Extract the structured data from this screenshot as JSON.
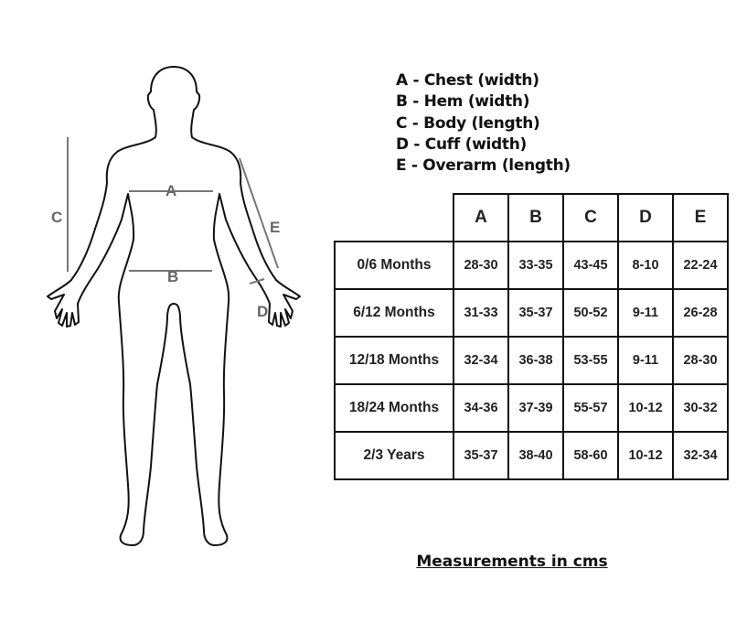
{
  "figure": {
    "labels": {
      "a": "A",
      "b": "B",
      "c": "C",
      "d": "D",
      "e": "E"
    },
    "line_color": "#777777"
  },
  "legend": [
    "A - Chest (width)",
    "B - Hem (width)",
    "C - Body (length)",
    "D - Cuff (width)",
    "E - Overarm (length)"
  ],
  "table": {
    "columns": [
      "A",
      "B",
      "C",
      "D",
      "E"
    ],
    "rows": [
      {
        "size": "0/6 Months",
        "values": [
          "28-30",
          "33-35",
          "43-45",
          "8-10",
          "22-24"
        ]
      },
      {
        "size": "6/12 Months",
        "values": [
          "31-33",
          "35-37",
          "50-52",
          "9-11",
          "26-28"
        ]
      },
      {
        "size": "12/18 Months",
        "values": [
          "32-34",
          "36-38",
          "53-55",
          "9-11",
          "28-30"
        ]
      },
      {
        "size": "18/24 Months",
        "values": [
          "34-36",
          "37-39",
          "55-57",
          "10-12",
          "30-32"
        ]
      },
      {
        "size": "2/3 Years",
        "values": [
          "35-37",
          "38-40",
          "58-60",
          "10-12",
          "32-34"
        ]
      }
    ]
  },
  "footer": "Measurements in cms"
}
